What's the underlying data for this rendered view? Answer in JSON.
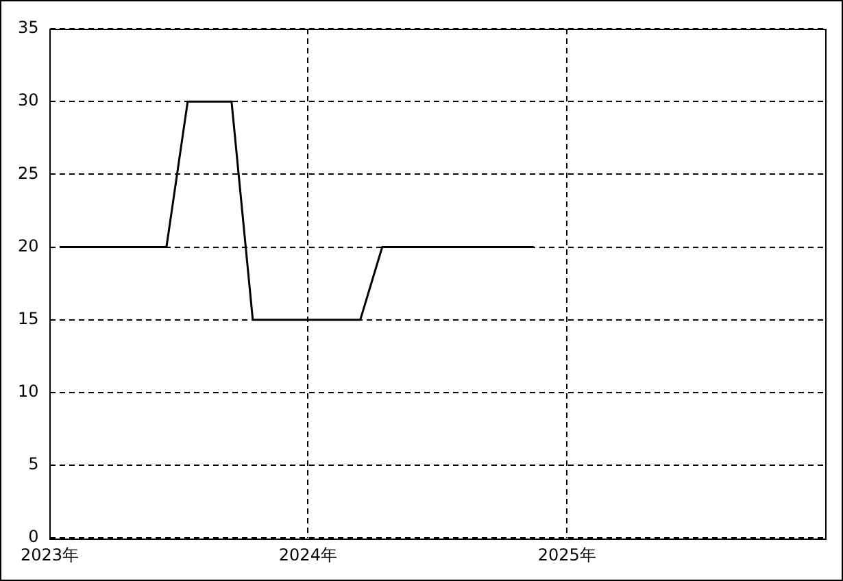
{
  "chart_data": {
    "type": "line",
    "x": [
      "2023-01-15",
      "2023-02-15",
      "2023-03-15",
      "2023-04-15",
      "2023-05-15",
      "2023-06-15",
      "2023-07-15",
      "2023-08-15",
      "2023-09-15",
      "2023-10-15",
      "2023-11-15",
      "2023-12-15",
      "2024-01-15",
      "2024-02-15",
      "2024-03-15",
      "2024-04-15",
      "2024-05-15",
      "2024-06-15",
      "2024-07-15",
      "2024-08-15",
      "2024-09-15",
      "2024-10-15",
      "2024-11-15"
    ],
    "series": [
      {
        "color": "#000000",
        "values": [
          20,
          20,
          20,
          20,
          20,
          20,
          30,
          30,
          30,
          15,
          15,
          15,
          15,
          15,
          15,
          20,
          20,
          20,
          20,
          20,
          20,
          20,
          20
        ]
      }
    ],
    "xlim": [
      "2023-01-01",
      "2026-01-01"
    ],
    "xticks": [
      {
        "value": "2023",
        "label": "2023年"
      },
      {
        "value": "2024",
        "label": "2024年"
      },
      {
        "value": "2025",
        "label": "2025年"
      }
    ],
    "ylim": [
      0,
      35
    ],
    "yticks": [
      0,
      5,
      10,
      15,
      20,
      25,
      30,
      35
    ],
    "grid": true,
    "legend": false,
    "marker": "none",
    "line_style": "solid"
  }
}
